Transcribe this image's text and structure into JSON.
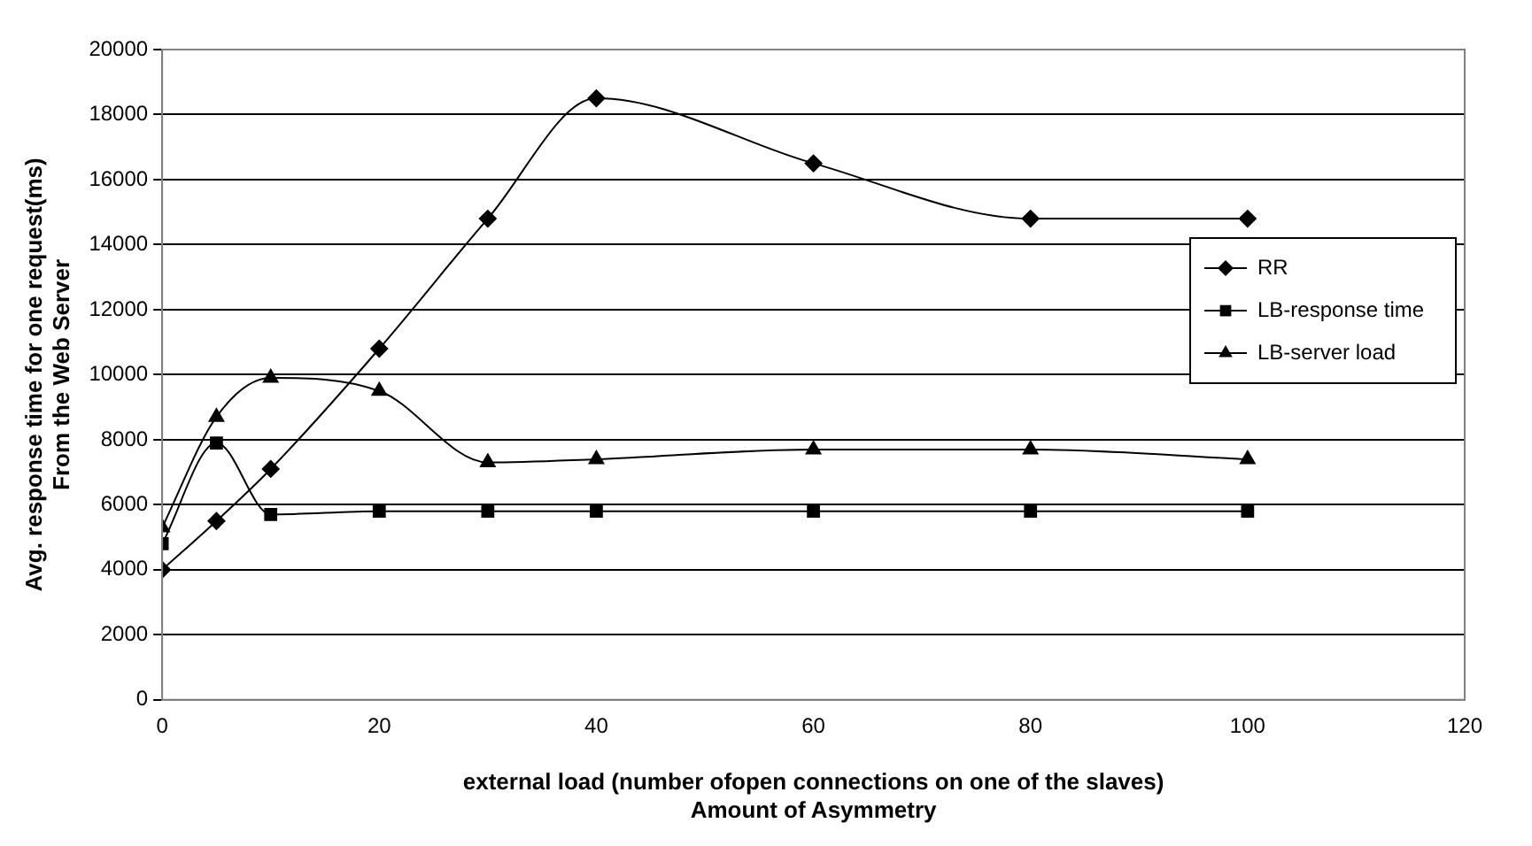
{
  "chart_data": {
    "type": "line",
    "xlabel": "external load (number ofopen connections on one of the slaves)\nAmount of Asymmetry",
    "ylabel": "Avg. response time for one request(ms)\nFrom the Web Server",
    "xlim": [
      0,
      120
    ],
    "xticks": [
      0,
      20,
      40,
      60,
      80,
      100,
      120
    ],
    "ylim": [
      0,
      20000
    ],
    "yticks": [
      0,
      2000,
      4000,
      6000,
      8000,
      10000,
      12000,
      14000,
      16000,
      18000,
      20000
    ],
    "grid": "y",
    "legend": "right",
    "line_style": "solid",
    "x": [
      0,
      5,
      10,
      20,
      30,
      40,
      60,
      80,
      100
    ],
    "series": [
      {
        "name": "RR",
        "color": "#000000",
        "marker": "diamond",
        "values": [
          4000,
          5500,
          7100,
          10800,
          14800,
          18500,
          16500,
          14800,
          14800
        ]
      },
      {
        "name": "LB-response time",
        "color": "#000000",
        "marker": "square",
        "values": [
          4800,
          7900,
          5700,
          5800,
          5800,
          5800,
          5800,
          5800,
          5800
        ]
      },
      {
        "name": "LB-server load",
        "color": "#000000",
        "marker": "triangle",
        "values": [
          5300,
          8700,
          9900,
          9500,
          7300,
          7400,
          7700,
          7700,
          7400
        ]
      }
    ]
  }
}
